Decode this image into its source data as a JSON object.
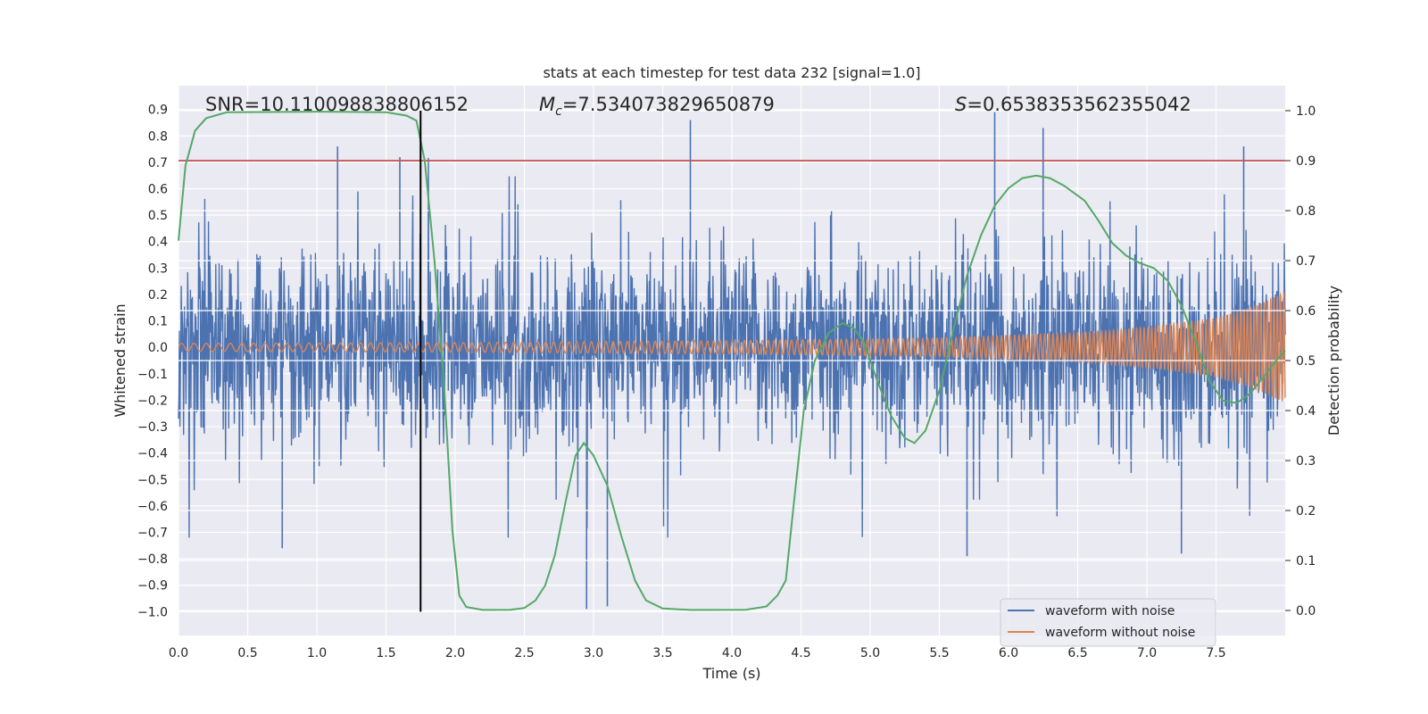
{
  "chart_data": {
    "type": "line",
    "title": "stats at each timestep for test data 232 [signal=1.0]",
    "xlabel": "Time (s)",
    "ylabel_left": "Whitened strain",
    "ylabel_right": "Detection probability",
    "xlim": [
      0.0,
      8.0
    ],
    "ylim_left": [
      -1.09,
      0.99
    ],
    "ylim_right": [
      -0.05,
      1.05
    ],
    "x_ticks": [
      "0.0",
      "0.5",
      "1.0",
      "1.5",
      "2.0",
      "2.5",
      "3.0",
      "3.5",
      "4.0",
      "4.5",
      "5.0",
      "5.5",
      "6.0",
      "6.5",
      "7.0",
      "7.5"
    ],
    "y_ticks_left": [
      "0.9",
      "0.8",
      "0.7",
      "0.6",
      "0.5",
      "0.4",
      "0.3",
      "0.2",
      "0.1",
      "0.0",
      "−0.1",
      "−0.2",
      "−0.3",
      "−0.4",
      "−0.5",
      "−0.6",
      "−0.7",
      "−0.8",
      "−0.9",
      "−1.0"
    ],
    "y_ticks_right": [
      "1.0",
      "0.9",
      "0.8",
      "0.7",
      "0.6",
      "0.5",
      "0.4",
      "0.3",
      "0.2",
      "0.1",
      "0.0"
    ],
    "grid": true,
    "legend_position": "bottom-right",
    "annotations": {
      "snr": "SNR=10.110098838806152",
      "mc_symbol": "M",
      "mc_sub": "c",
      "mc_value": "=7.534073829650879",
      "s_symbol": "S",
      "s_value": "=0.6538353562355042"
    },
    "threshold_right": 0.9,
    "vline_x": 1.75,
    "series": [
      {
        "name": "waveform with noise",
        "color": "#4c72b0",
        "envelope": "noise band roughly ±0.35 with spikes up to ±0.9",
        "spike_peaks": [
          {
            "x": 1.15,
            "y": 0.76
          },
          {
            "x": 1.6,
            "y": 0.72
          },
          {
            "x": 3.7,
            "y": 0.86
          },
          {
            "x": 5.9,
            "y": 0.89
          },
          {
            "x": 6.25,
            "y": 0.83
          },
          {
            "x": 7.7,
            "y": 0.76
          },
          {
            "x": 0.75,
            "y": -0.76
          },
          {
            "x": 2.95,
            "y": -0.99
          },
          {
            "x": 3.1,
            "y": -0.98
          },
          {
            "x": 5.7,
            "y": -0.79
          },
          {
            "x": 7.25,
            "y": -0.78
          }
        ]
      },
      {
        "name": "waveform without noise",
        "color": "#dd8452",
        "description_amplitude": [
          {
            "x": 0.0,
            "y": 0.015
          },
          {
            "x": 2.0,
            "y": 0.018
          },
          {
            "x": 4.0,
            "y": 0.025
          },
          {
            "x": 5.5,
            "y": 0.035
          },
          {
            "x": 6.5,
            "y": 0.055
          },
          {
            "x": 7.0,
            "y": 0.075
          },
          {
            "x": 7.5,
            "y": 0.11
          },
          {
            "x": 7.8,
            "y": 0.16
          },
          {
            "x": 8.0,
            "y": 0.21
          }
        ]
      },
      {
        "name": "detection probability",
        "axis": "right",
        "color": "#55a868",
        "points": [
          {
            "x": 0.0,
            "y": 0.74
          },
          {
            "x": 0.05,
            "y": 0.89
          },
          {
            "x": 0.12,
            "y": 0.96
          },
          {
            "x": 0.2,
            "y": 0.985
          },
          {
            "x": 0.35,
            "y": 0.997
          },
          {
            "x": 1.0,
            "y": 0.998
          },
          {
            "x": 1.5,
            "y": 0.997
          },
          {
            "x": 1.65,
            "y": 0.99
          },
          {
            "x": 1.72,
            "y": 0.98
          },
          {
            "x": 1.78,
            "y": 0.9
          },
          {
            "x": 1.85,
            "y": 0.7
          },
          {
            "x": 1.92,
            "y": 0.45
          },
          {
            "x": 1.98,
            "y": 0.16
          },
          {
            "x": 2.03,
            "y": 0.03
          },
          {
            "x": 2.08,
            "y": 0.007
          },
          {
            "x": 2.2,
            "y": 0.001
          },
          {
            "x": 2.4,
            "y": 0.0015
          },
          {
            "x": 2.5,
            "y": 0.005
          },
          {
            "x": 2.58,
            "y": 0.02
          },
          {
            "x": 2.65,
            "y": 0.05
          },
          {
            "x": 2.72,
            "y": 0.11
          },
          {
            "x": 2.8,
            "y": 0.22
          },
          {
            "x": 2.87,
            "y": 0.31
          },
          {
            "x": 2.93,
            "y": 0.335
          },
          {
            "x": 3.0,
            "y": 0.31
          },
          {
            "x": 3.1,
            "y": 0.25
          },
          {
            "x": 3.2,
            "y": 0.15
          },
          {
            "x": 3.3,
            "y": 0.06
          },
          {
            "x": 3.38,
            "y": 0.02
          },
          {
            "x": 3.5,
            "y": 0.004
          },
          {
            "x": 3.7,
            "y": 0.001
          },
          {
            "x": 4.1,
            "y": 0.0015
          },
          {
            "x": 4.25,
            "y": 0.008
          },
          {
            "x": 4.33,
            "y": 0.03
          },
          {
            "x": 4.39,
            "y": 0.06
          },
          {
            "x": 4.45,
            "y": 0.22
          },
          {
            "x": 4.52,
            "y": 0.4
          },
          {
            "x": 4.6,
            "y": 0.5
          },
          {
            "x": 4.7,
            "y": 0.555
          },
          {
            "x": 4.8,
            "y": 0.575
          },
          {
            "x": 4.88,
            "y": 0.565
          },
          {
            "x": 4.95,
            "y": 0.54
          },
          {
            "x": 5.05,
            "y": 0.46
          },
          {
            "x": 5.15,
            "y": 0.39
          },
          {
            "x": 5.25,
            "y": 0.345
          },
          {
            "x": 5.32,
            "y": 0.335
          },
          {
            "x": 5.4,
            "y": 0.36
          },
          {
            "x": 5.5,
            "y": 0.44
          },
          {
            "x": 5.6,
            "y": 0.56
          },
          {
            "x": 5.7,
            "y": 0.67
          },
          {
            "x": 5.8,
            "y": 0.75
          },
          {
            "x": 5.9,
            "y": 0.81
          },
          {
            "x": 6.0,
            "y": 0.845
          },
          {
            "x": 6.1,
            "y": 0.865
          },
          {
            "x": 6.2,
            "y": 0.87
          },
          {
            "x": 6.3,
            "y": 0.865
          },
          {
            "x": 6.4,
            "y": 0.85
          },
          {
            "x": 6.55,
            "y": 0.82
          },
          {
            "x": 6.65,
            "y": 0.78
          },
          {
            "x": 6.75,
            "y": 0.735
          },
          {
            "x": 6.85,
            "y": 0.71
          },
          {
            "x": 6.95,
            "y": 0.695
          },
          {
            "x": 7.05,
            "y": 0.685
          },
          {
            "x": 7.15,
            "y": 0.66
          },
          {
            "x": 7.25,
            "y": 0.61
          },
          {
            "x": 7.35,
            "y": 0.54
          },
          {
            "x": 7.45,
            "y": 0.46
          },
          {
            "x": 7.55,
            "y": 0.42
          },
          {
            "x": 7.65,
            "y": 0.415
          },
          {
            "x": 7.75,
            "y": 0.435
          },
          {
            "x": 7.85,
            "y": 0.47
          },
          {
            "x": 7.95,
            "y": 0.505
          },
          {
            "x": 8.0,
            "y": 0.52
          }
        ]
      }
    ]
  }
}
